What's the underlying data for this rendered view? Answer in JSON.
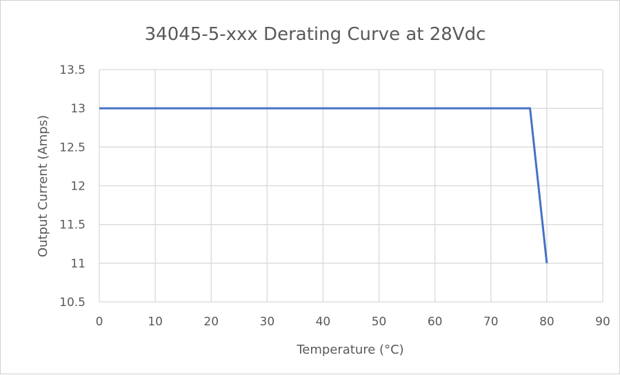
{
  "chart_data": {
    "type": "line",
    "title": "34045-5-xxx Derating Curve at 28Vdc",
    "xlabel": "Temperature (°C)",
    "ylabel": "Output Current (Amps)",
    "xlim": [
      0,
      90
    ],
    "ylim": [
      10.5,
      13.5
    ],
    "x_ticks": [
      "0",
      "10",
      "20",
      "30",
      "40",
      "50",
      "60",
      "70",
      "80",
      "90"
    ],
    "y_ticks": [
      "13.5",
      "13",
      "12.5",
      "12",
      "11.5",
      "11",
      "10.5"
    ],
    "grid": true,
    "series": [
      {
        "color": "#4472c4",
        "x": [
          0,
          77,
          80
        ],
        "y": [
          13,
          13,
          11
        ]
      }
    ]
  }
}
